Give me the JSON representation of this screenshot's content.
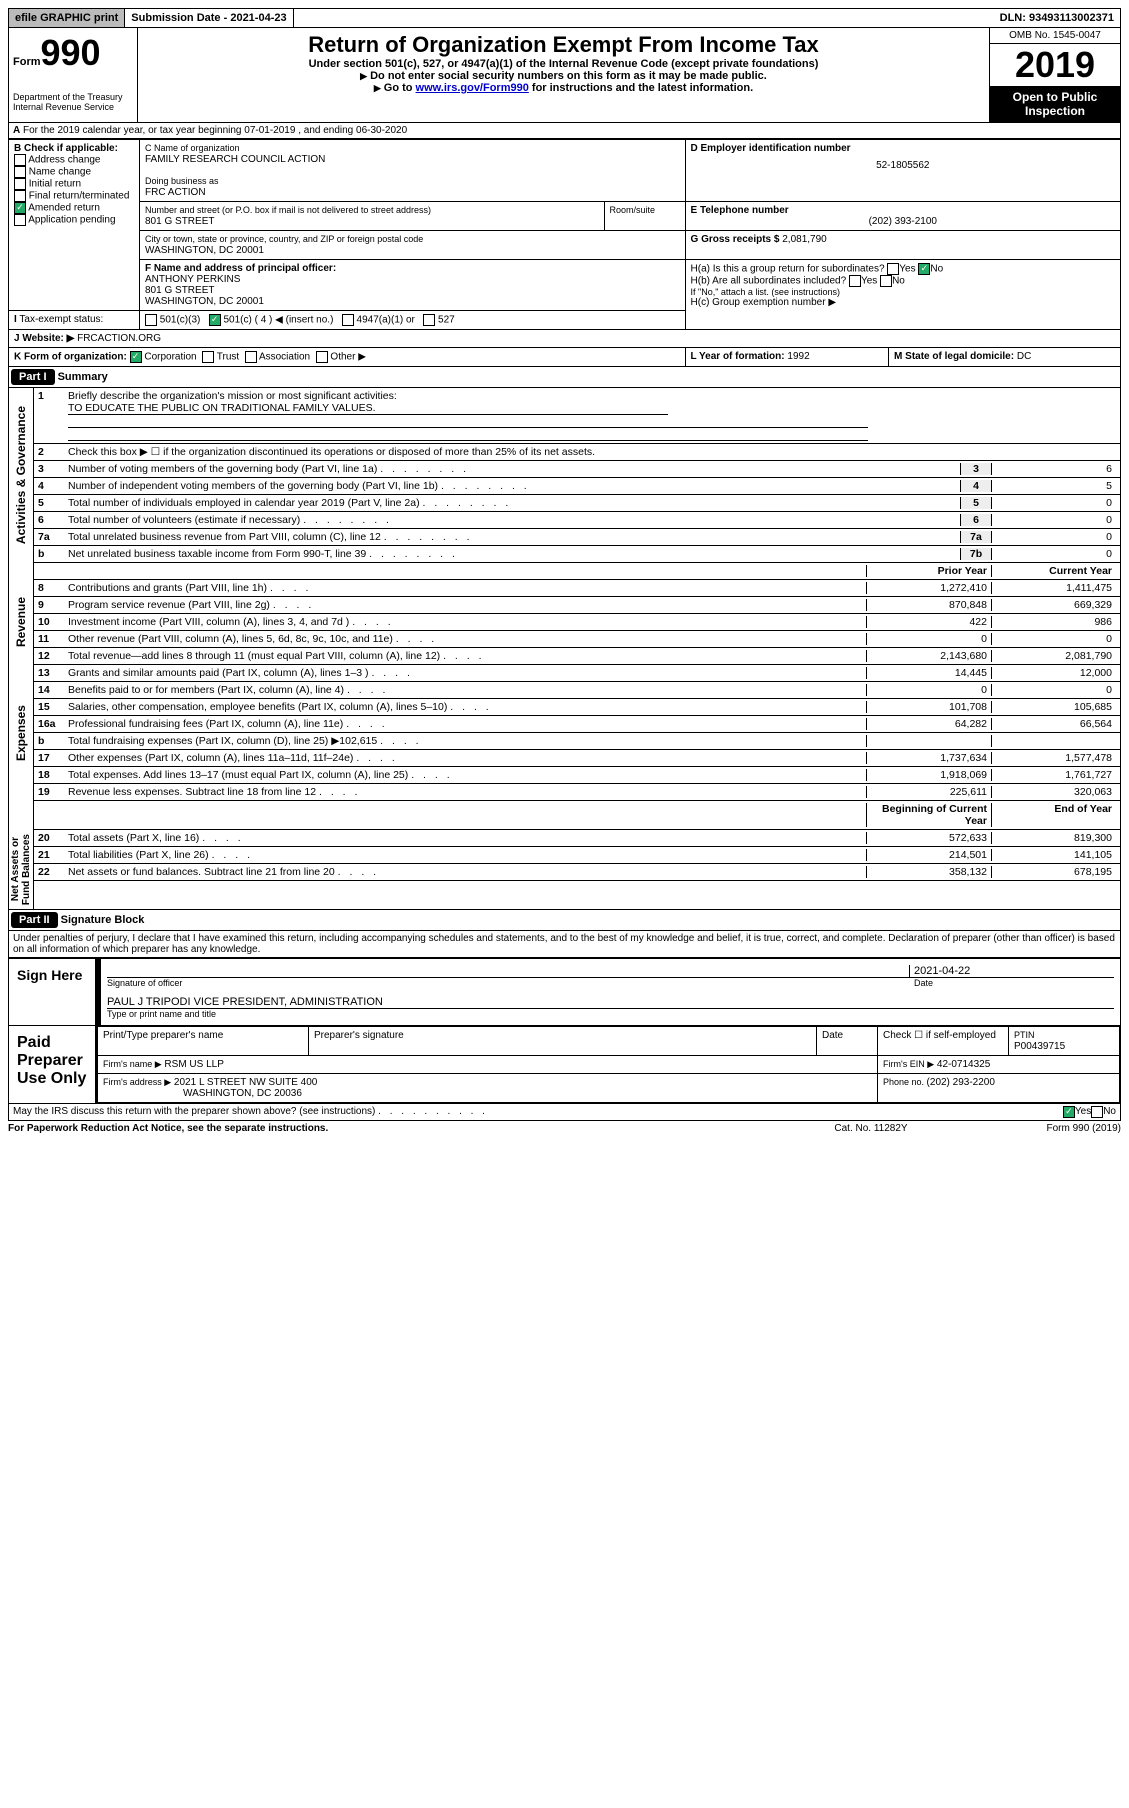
{
  "topbar": {
    "efile": "efile GRAPHIC print",
    "subm_lbl": "Submission Date - ",
    "subm_date": "2021-04-23",
    "dln_lbl": "DLN: ",
    "dln": "93493113002371"
  },
  "header": {
    "form_prefix": "Form",
    "form_num": "990",
    "dept": "Department of the Treasury\nInternal Revenue Service",
    "title": "Return of Organization Exempt From Income Tax",
    "sub1": "Under section 501(c), 527, or 4947(a)(1) of the Internal Revenue Code (except private foundations)",
    "sub2": "Do not enter social security numbers on this form as it may be made public.",
    "sub3_pre": "Go to ",
    "sub3_link": "www.irs.gov/Form990",
    "sub3_post": " for instructions and the latest information.",
    "omb": "OMB No. 1545-0047",
    "year": "2019",
    "open": "Open to Public Inspection"
  },
  "a_line": "For the 2019 calendar year, or tax year beginning 07-01-2019    , and ending 06-30-2020",
  "b": {
    "label": "B Check if applicable:",
    "opts": [
      "Address change",
      "Name change",
      "Initial return",
      "Final return/terminated",
      "Amended return",
      "Application pending"
    ],
    "checked": [
      false,
      false,
      false,
      false,
      true,
      false
    ]
  },
  "c": {
    "name_lbl": "C Name of organization",
    "name": "FAMILY RESEARCH COUNCIL ACTION",
    "dba_lbl": "Doing business as",
    "dba": "FRC ACTION",
    "street_lbl": "Number and street (or P.O. box if mail is not delivered to street address)",
    "room_lbl": "Room/suite",
    "street": "801 G STREET",
    "city_lbl": "City or town, state or province, country, and ZIP or foreign postal code",
    "city": "WASHINGTON, DC  20001"
  },
  "d": {
    "lbl": "D Employer identification number",
    "val": "52-1805562"
  },
  "e": {
    "lbl": "E Telephone number",
    "val": "(202) 393-2100"
  },
  "g": {
    "lbl": "G Gross receipts $ ",
    "val": "2,081,790"
  },
  "f": {
    "lbl": "F  Name and address of principal officer:",
    "name": "ANTHONY PERKINS",
    "addr1": "801 G STREET",
    "addr2": "WASHINGTON, DC  20001"
  },
  "h": {
    "a": "H(a)  Is this a group return for subordinates?",
    "b": "H(b)  Are all subordinates included?",
    "note": "If \"No,\" attach a list. (see instructions)",
    "c": "H(c)  Group exemption number ▶",
    "yes": "Yes",
    "no": "No"
  },
  "i": {
    "lbl": "Tax-exempt status:",
    "opts": [
      "501(c)(3)",
      "501(c) ( 4 ) ◀ (insert no.)",
      "4947(a)(1) or",
      "527"
    ],
    "checked": 1
  },
  "j": {
    "lbl": "Website: ▶",
    "val": " FRCACTION.ORG"
  },
  "k": {
    "lbl": "K Form of organization:",
    "opts": [
      "Corporation",
      "Trust",
      "Association",
      "Other ▶"
    ],
    "checked": 0
  },
  "l": {
    "lbl": "L Year of formation: ",
    "val": "1992"
  },
  "m": {
    "lbl": "M State of legal domicile: ",
    "val": "DC"
  },
  "part1": "Part I",
  "summary": "Summary",
  "p1": {
    "l1": "Briefly describe the organization's mission or most significant activities:",
    "l1v": "TO EDUCATE THE PUBLIC ON TRADITIONAL FAMILY VALUES.",
    "l2": "Check this box ▶ ☐  if the organization discontinued its operations or disposed of more than 25% of its net assets.",
    "rows": [
      {
        "n": "3",
        "t": "Number of voting members of the governing body (Part VI, line 1a)",
        "b": "3",
        "v": "6"
      },
      {
        "n": "4",
        "t": "Number of independent voting members of the governing body (Part VI, line 1b)",
        "b": "4",
        "v": "5"
      },
      {
        "n": "5",
        "t": "Total number of individuals employed in calendar year 2019 (Part V, line 2a)",
        "b": "5",
        "v": "0"
      },
      {
        "n": "6",
        "t": "Total number of volunteers (estimate if necessary)",
        "b": "6",
        "v": "0"
      },
      {
        "n": "7a",
        "t": "Total unrelated business revenue from Part VIII, column (C), line 12",
        "b": "7a",
        "v": "0"
      },
      {
        "n": "b ",
        "t": "Net unrelated business taxable income from Form 990-T, line 39",
        "b": "7b",
        "v": "0"
      }
    ]
  },
  "colhd": {
    "prior": "Prior Year",
    "curr": "Current Year",
    "begin": "Beginning of Current Year",
    "end": "End of Year"
  },
  "revenue": [
    {
      "n": "8",
      "t": "Contributions and grants (Part VIII, line 1h)",
      "p": "1,272,410",
      "c": "1,411,475"
    },
    {
      "n": "9",
      "t": "Program service revenue (Part VIII, line 2g)",
      "p": "870,848",
      "c": "669,329"
    },
    {
      "n": "10",
      "t": "Investment income (Part VIII, column (A), lines 3, 4, and 7d )",
      "p": "422",
      "c": "986"
    },
    {
      "n": "11",
      "t": "Other revenue (Part VIII, column (A), lines 5, 6d, 8c, 9c, 10c, and 11e)",
      "p": "0",
      "c": "0"
    },
    {
      "n": "12",
      "t": "Total revenue—add lines 8 through 11 (must equal Part VIII, column (A), line 12)",
      "p": "2,143,680",
      "c": "2,081,790"
    }
  ],
  "expenses": [
    {
      "n": "13",
      "t": "Grants and similar amounts paid (Part IX, column (A), lines 1–3 )",
      "p": "14,445",
      "c": "12,000"
    },
    {
      "n": "14",
      "t": "Benefits paid to or for members (Part IX, column (A), line 4)",
      "p": "0",
      "c": "0"
    },
    {
      "n": "15",
      "t": "Salaries, other compensation, employee benefits (Part IX, column (A), lines 5–10)",
      "p": "101,708",
      "c": "105,685"
    },
    {
      "n": "16a",
      "t": "Professional fundraising fees (Part IX, column (A), line 11e)",
      "p": "64,282",
      "c": "66,564"
    },
    {
      "n": "b",
      "t": "Total fundraising expenses (Part IX, column (D), line 25) ▶102,615",
      "p": "",
      "c": ""
    },
    {
      "n": "17",
      "t": "Other expenses (Part IX, column (A), lines 11a–11d, 11f–24e)",
      "p": "1,737,634",
      "c": "1,577,478"
    },
    {
      "n": "18",
      "t": "Total expenses. Add lines 13–17 (must equal Part IX, column (A), line 25)",
      "p": "1,918,069",
      "c": "1,761,727"
    },
    {
      "n": "19",
      "t": "Revenue less expenses. Subtract line 18 from line 12",
      "p": "225,611",
      "c": "320,063"
    }
  ],
  "net": [
    {
      "n": "20",
      "t": "Total assets (Part X, line 16)",
      "p": "572,633",
      "c": "819,300"
    },
    {
      "n": "21",
      "t": "Total liabilities (Part X, line 26)",
      "p": "214,501",
      "c": "141,105"
    },
    {
      "n": "22",
      "t": "Net assets or fund balances. Subtract line 21 from line 20",
      "p": "358,132",
      "c": "678,195"
    }
  ],
  "sidelabels": {
    "ag": "Activities & Governance",
    "rev": "Revenue",
    "exp": "Expenses",
    "net": "Net Assets or\nFund Balances"
  },
  "part2": "Part II",
  "sigblock": "Signature Block",
  "penalty": "Under penalties of perjury, I declare that I have examined this return, including accompanying schedules and statements, and to the best of my knowledge and belief, it is true, correct, and complete. Declaration of preparer (other than officer) is based on all information of which preparer has any knowledge.",
  "sign": {
    "here": "Sign Here",
    "sigof": "Signature of officer",
    "date_lbl": "Date",
    "date": "2021-04-22",
    "name": "PAUL J TRIPODI  VICE PRESIDENT, ADMINISTRATION",
    "name_lbl": "Type or print name and title"
  },
  "paid": {
    "title": "Paid Preparer Use Only",
    "col1": "Print/Type preparer's name",
    "col2": "Preparer's signature",
    "col3": "Date",
    "chk": "Check ☐  if self-employed",
    "ptin_lbl": "PTIN",
    "ptin": "P00439715",
    "firm_lbl": "Firm's name   ▶",
    "firm": " RSM US LLP",
    "ein_lbl": "Firm's EIN ▶",
    "ein": " 42-0714325",
    "addr_lbl": "Firm's address ▶",
    "addr1": " 2021 L STREET NW SUITE 400",
    "addr2": "WASHINGTON, DC  20036",
    "phone_lbl": "Phone no. ",
    "phone": "(202) 293-2200"
  },
  "irs_discuss": "May the IRS discuss this return with the preparer shown above? (see instructions)",
  "footer": {
    "left": "For Paperwork Reduction Act Notice, see the separate instructions.",
    "mid": "Cat. No. 11282Y",
    "right": "Form 990 (2019)"
  }
}
